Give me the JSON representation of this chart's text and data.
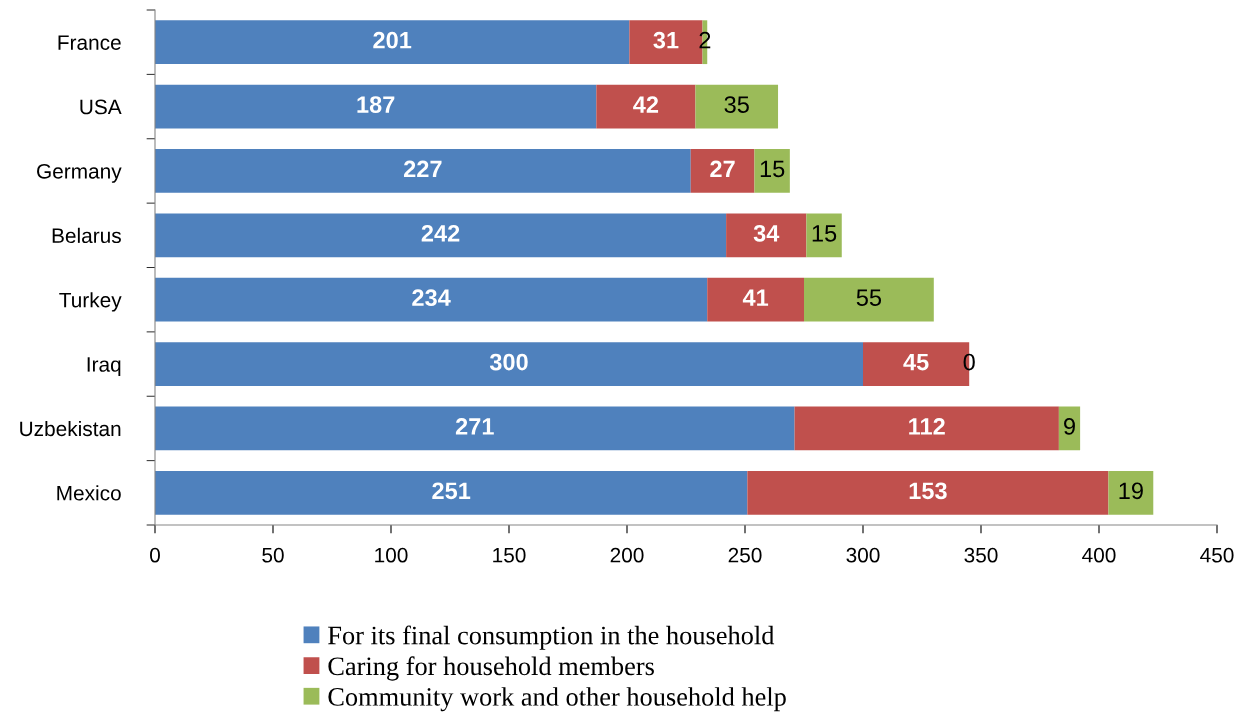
{
  "chart_data": {
    "type": "bar",
    "orientation": "horizontal",
    "stacked": true,
    "categories": [
      "France",
      "USA",
      "Germany",
      "Belarus",
      "Turkey",
      "Iraq",
      "Uzbekistan",
      "Mexico"
    ],
    "series": [
      {
        "name": "For its final consumption in the household",
        "color": "#4f81bd",
        "values": [
          201,
          187,
          227,
          242,
          234,
          300,
          271,
          251
        ]
      },
      {
        "name": "Caring for household members",
        "color": "#c0504d",
        "values": [
          31,
          42,
          27,
          34,
          41,
          45,
          112,
          153
        ]
      },
      {
        "name": "Community work and other household help",
        "color": "#9bbb59",
        "values": [
          2,
          35,
          15,
          15,
          55,
          0,
          9,
          19
        ]
      }
    ],
    "xlim": [
      0,
      450
    ],
    "xticks": [
      0,
      50,
      100,
      150,
      200,
      250,
      300,
      350,
      400,
      450
    ],
    "data_labels": true,
    "legend": "bottom",
    "grid": false
  }
}
